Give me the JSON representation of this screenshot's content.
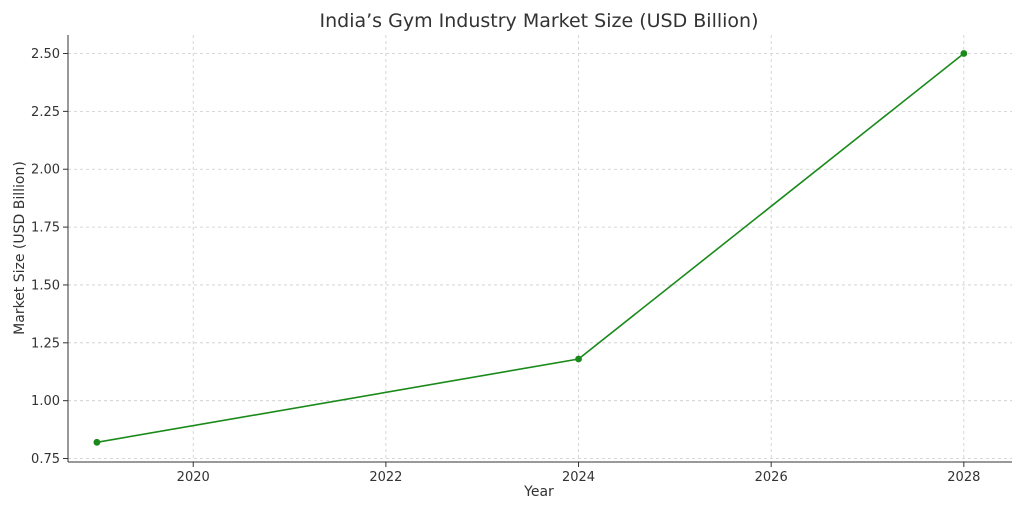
{
  "chart_data": {
    "type": "line",
    "title": "India’s Gym Industry Market Size (USD Billion)",
    "xlabel": "Year",
    "ylabel": "Market Size (USD Billion)",
    "xlim": [
      2018.7,
      2028.5
    ],
    "ylim": [
      0.735,
      2.58
    ],
    "x_ticks": [
      2020,
      2022,
      2024,
      2026,
      2028
    ],
    "x_tick_labels": [
      "2020",
      "2022",
      "2024",
      "2026",
      "2028"
    ],
    "y_ticks": [
      0.75,
      1.0,
      1.25,
      1.5,
      1.75,
      2.0,
      2.25,
      2.5
    ],
    "y_tick_labels": [
      "0.75",
      "1.00",
      "1.25",
      "1.50",
      "1.75",
      "2.00",
      "2.25",
      "2.50"
    ],
    "grid": true,
    "series": [
      {
        "x": [
          2019,
          2024,
          2028
        ],
        "y": [
          0.82,
          1.18,
          2.5
        ],
        "color": "#1a8a1a",
        "marker": "circle"
      }
    ]
  }
}
